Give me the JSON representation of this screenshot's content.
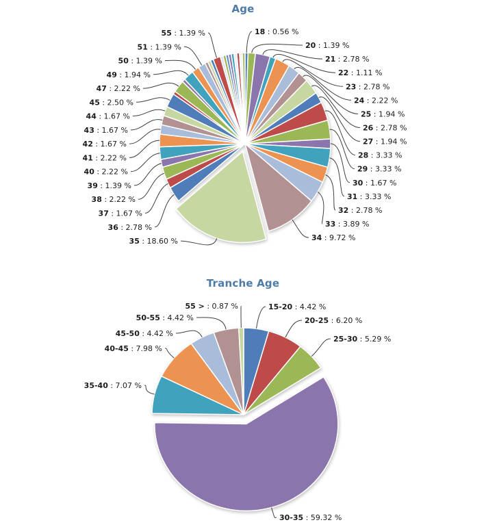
{
  "styles": {
    "background": "#ffffff",
    "title_color": "#4d7ba7",
    "label_color": "#1c1c1c",
    "leader_line_color": "#3f3f3f",
    "slice_stroke": "#ffffff"
  },
  "format": {
    "separator": " : ",
    "suffix": " %"
  },
  "chart_data": [
    {
      "type": "pie",
      "title": "Age",
      "legend_position": "none",
      "labels_style": "leader-line callouts around pie",
      "slices": [
        {
          "label": "18",
          "value": 0.56,
          "pct": "0.56",
          "color": "#4f7dba",
          "pulled": false
        },
        {
          "label": "20",
          "value": 1.39,
          "pct": "1.39",
          "color": "#9cb857",
          "pulled": false
        },
        {
          "label": "21",
          "value": 2.78,
          "pct": "2.78",
          "color": "#8a74ad",
          "pulled": false
        },
        {
          "label": "22",
          "value": 1.11,
          "pct": "1.11",
          "color": "#3fa2bd",
          "pulled": false
        },
        {
          "label": "23",
          "value": 2.78,
          "pct": "2.78",
          "color": "#ec9351",
          "pulled": false
        },
        {
          "label": "24",
          "value": 2.22,
          "pct": "2.22",
          "color": "#a9bdda",
          "pulled": false
        },
        {
          "label": "25",
          "value": 1.94,
          "pct": "1.94",
          "color": "#b29192",
          "pulled": false
        },
        {
          "label": "26",
          "value": 2.78,
          "pct": "2.78",
          "color": "#c7d7a1",
          "pulled": false
        },
        {
          "label": "27",
          "value": 1.94,
          "pct": "1.94",
          "color": "#4f7dba",
          "pulled": false
        },
        {
          "label": "28",
          "value": 3.33,
          "pct": "3.33",
          "color": "#bd4b48",
          "pulled": false
        },
        {
          "label": "29",
          "value": 3.33,
          "pct": "3.33",
          "color": "#9cb857",
          "pulled": false
        },
        {
          "label": "30",
          "value": 1.67,
          "pct": "1.67",
          "color": "#8a74ad",
          "pulled": false
        },
        {
          "label": "31",
          "value": 3.33,
          "pct": "3.33",
          "color": "#3fa2bd",
          "pulled": false
        },
        {
          "label": "32",
          "value": 2.78,
          "pct": "2.78",
          "color": "#ec9351",
          "pulled": false
        },
        {
          "label": "33",
          "value": 3.89,
          "pct": "3.89",
          "color": "#a9bdda",
          "pulled": false
        },
        {
          "label": "34",
          "value": 9.72,
          "pct": "9.72",
          "color": "#b29192",
          "pulled": false
        },
        {
          "label": "35",
          "value": 18.6,
          "pct": "18.60",
          "color": "#c7d7a1",
          "pulled": true
        },
        {
          "label": "36",
          "value": 2.78,
          "pct": "2.78",
          "color": "#4f7dba",
          "pulled": false
        },
        {
          "label": "37",
          "value": 1.67,
          "pct": "1.67",
          "color": "#bd4b48",
          "pulled": false
        },
        {
          "label": "38",
          "value": 2.22,
          "pct": "2.22",
          "color": "#9cb857",
          "pulled": false
        },
        {
          "label": "39",
          "value": 1.39,
          "pct": "1.39",
          "color": "#8a74ad",
          "pulled": false
        },
        {
          "label": "40",
          "value": 2.22,
          "pct": "2.22",
          "color": "#3fa2bd",
          "pulled": false
        },
        {
          "label": "41",
          "value": 2.22,
          "pct": "2.22",
          "color": "#ec9351",
          "pulled": false
        },
        {
          "label": "42",
          "value": 1.67,
          "pct": "1.67",
          "color": "#a9bdda",
          "pulled": false
        },
        {
          "label": "43",
          "value": 1.67,
          "pct": "1.67",
          "color": "#b29192",
          "pulled": false
        },
        {
          "label": "44",
          "value": 1.67,
          "pct": "1.67",
          "color": "#c7d7a1",
          "pulled": false
        },
        {
          "label": "45",
          "value": 2.5,
          "pct": "2.50",
          "color": "#4f7dba",
          "pulled": false
        },
        {
          "label": "",
          "value": 0.56,
          "pct": "",
          "color": "#bd4b48",
          "pulled": false
        },
        {
          "label": "47",
          "value": 2.22,
          "pct": "2.22",
          "color": "#9cb857",
          "pulled": false
        },
        {
          "label": "",
          "value": 0.56,
          "pct": "",
          "color": "#8a74ad",
          "pulled": false
        },
        {
          "label": "49",
          "value": 1.94,
          "pct": "1.94",
          "color": "#3fa2bd",
          "pulled": false
        },
        {
          "label": "50",
          "value": 1.39,
          "pct": "1.39",
          "color": "#ec9351",
          "pulled": false
        },
        {
          "label": "51",
          "value": 1.39,
          "pct": "1.39",
          "color": "#a9bdda",
          "pulled": false
        },
        {
          "label": "",
          "value": 0.56,
          "pct": "",
          "color": "#b29192",
          "pulled": false
        },
        {
          "label": "",
          "value": 0.56,
          "pct": "",
          "color": "#c7d7a1",
          "pulled": false
        },
        {
          "label": "",
          "value": 0.56,
          "pct": "",
          "color": "#4f7dba",
          "pulled": false
        },
        {
          "label": "55",
          "value": 1.39,
          "pct": "1.39",
          "color": "#bd4b48",
          "pulled": false
        },
        {
          "label": "",
          "value": 0.52,
          "pct": "",
          "color": "#dfe3ea",
          "pulled": false
        },
        {
          "label": "",
          "value": 0.52,
          "pct": "",
          "color": "#9cb857",
          "pulled": false
        },
        {
          "label": "",
          "value": 0.52,
          "pct": "",
          "color": "#6b93c4",
          "pulled": false
        },
        {
          "label": "",
          "value": 0.52,
          "pct": "",
          "color": "#8a74ad",
          "pulled": false
        },
        {
          "label": "",
          "value": 0.52,
          "pct": "",
          "color": "#3fa2bd",
          "pulled": false
        },
        {
          "label": "",
          "value": 0.52,
          "pct": "",
          "color": "#e8ecf2",
          "pulled": false
        },
        {
          "label": "",
          "value": 0.52,
          "pct": "",
          "color": "#bd4b48",
          "pulled": false
        },
        {
          "label": "",
          "value": 0.52,
          "pct": "",
          "color": "#eff1f4",
          "pulled": false
        },
        {
          "label": "",
          "value": 0.52,
          "pct": "",
          "color": "#abc06f",
          "pulled": false
        }
      ]
    },
    {
      "type": "pie",
      "title": "Tranche Age",
      "legend_position": "none",
      "labels_style": "leader-line callouts around pie",
      "slices": [
        {
          "label": "15-20",
          "value": 4.42,
          "pct": "4.42",
          "color": "#4f7dba",
          "pulled": false
        },
        {
          "label": "20-25",
          "value": 6.2,
          "pct": "6.20",
          "color": "#bd4b48",
          "pulled": false
        },
        {
          "label": "25-30",
          "value": 5.29,
          "pct": "5.29",
          "color": "#9cb857",
          "pulled": false
        },
        {
          "label": "30-35",
          "value": 59.32,
          "pct": "59.32",
          "color": "#8a74ad",
          "pulled": true
        },
        {
          "label": "35-40",
          "value": 7.07,
          "pct": "7.07",
          "color": "#3fa2bd",
          "pulled": false
        },
        {
          "label": "40-45",
          "value": 7.98,
          "pct": "7.98",
          "color": "#ec9351",
          "pulled": false
        },
        {
          "label": "45-50",
          "value": 4.42,
          "pct": "4.42",
          "color": "#a9bdda",
          "pulled": false
        },
        {
          "label": "50-55",
          "value": 4.42,
          "pct": "4.42",
          "color": "#b29192",
          "pulled": false
        },
        {
          "label": "55 >",
          "value": 0.87,
          "pct": "0.87",
          "color": "#c7d7a1",
          "pulled": false
        }
      ]
    }
  ]
}
